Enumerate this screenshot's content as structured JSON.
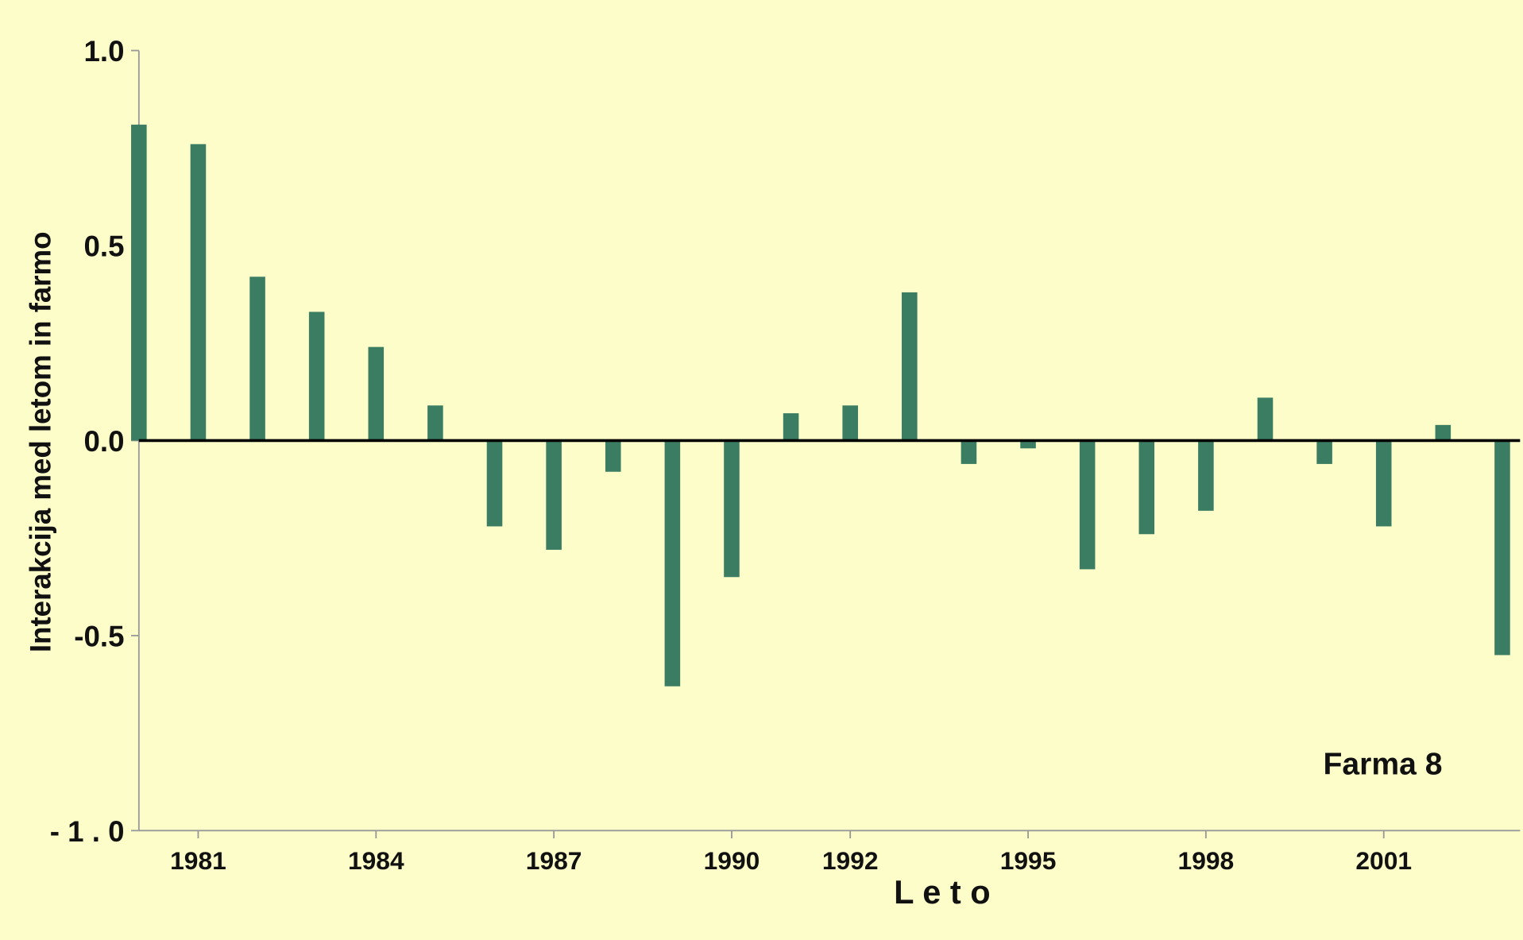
{
  "chart_data": {
    "type": "bar",
    "x_label": "L e t o",
    "y_label": "Interakcija med letom in farmo",
    "annotation": "Farma 8",
    "color": "#3a7d62",
    "x": [
      1980,
      1981,
      1982,
      1983,
      1984,
      1985,
      1986,
      1987,
      1988,
      1989,
      1990,
      1991,
      1992,
      1993,
      1994,
      1995,
      1996,
      1997,
      1998,
      1999,
      2000,
      2001,
      2002,
      2003
    ],
    "values": [
      0.81,
      0.76,
      0.42,
      0.33,
      0.24,
      0.09,
      -0.22,
      -0.28,
      -0.08,
      -0.63,
      -0.35,
      0.07,
      0.09,
      0.38,
      -0.06,
      -0.02,
      -0.33,
      -0.24,
      -0.18,
      0.11,
      -0.06,
      -0.22,
      0.04,
      -0.55
    ],
    "xlim": [
      1980,
      2003.3
    ],
    "xticks": [
      1981,
      1984,
      1987,
      1990,
      1992,
      1995,
      1998,
      2001
    ],
    "ylim": [
      -1.0,
      1.0
    ],
    "yticks": [
      {
        "value": 1.0,
        "label": "1.0"
      },
      0.5,
      {
        "value": 0.0,
        "label": "0.0"
      },
      -0.5,
      {
        "value": -1.0,
        "label": "- 1 . 0"
      }
    ]
  }
}
